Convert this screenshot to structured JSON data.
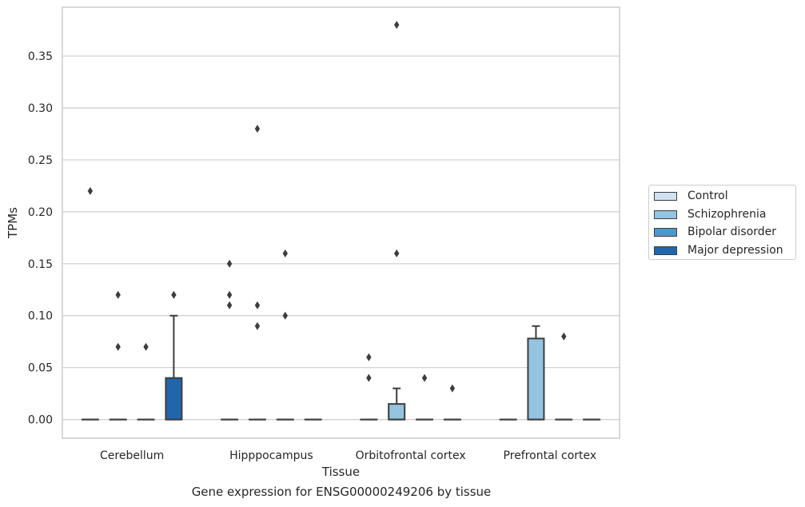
{
  "chart_data": {
    "type": "box",
    "caption": "Gene expression for ENSG00000249206 by tissue",
    "xlabel": "Tissue",
    "ylabel": "TPMs",
    "ylim": [
      -0.018,
      0.397
    ],
    "yticks": [
      0.0,
      0.05,
      0.1,
      0.15,
      0.2,
      0.25,
      0.3,
      0.35
    ],
    "ytick_labels": [
      "0.00",
      "0.05",
      "0.10",
      "0.15",
      "0.20",
      "0.25",
      "0.30",
      "0.35"
    ],
    "grid": "horizontal",
    "legend_position": "right",
    "categories": [
      "Cerebellum",
      "Hipppocampus",
      "Orbitofrontal cortex",
      "Prefrontal cortex"
    ],
    "series": [
      {
        "name": "Control",
        "color": "#d0e1f2",
        "boxes": [
          {
            "category": "Cerebellum",
            "q1": 0,
            "median": 0,
            "q3": 0,
            "whisker_low": 0,
            "whisker_high": 0,
            "outliers": [
              0.22
            ]
          },
          {
            "category": "Hipppocampus",
            "q1": 0,
            "median": 0,
            "q3": 0,
            "whisker_low": 0,
            "whisker_high": 0,
            "outliers": [
              0.15,
              0.12,
              0.11
            ]
          },
          {
            "category": "Orbitofrontal cortex",
            "q1": 0,
            "median": 0,
            "q3": 0,
            "whisker_low": 0,
            "whisker_high": 0,
            "outliers": [
              0.06,
              0.04
            ]
          },
          {
            "category": "Prefrontal cortex",
            "q1": 0,
            "median": 0,
            "q3": 0,
            "whisker_low": 0,
            "whisker_high": 0,
            "outliers": []
          }
        ]
      },
      {
        "name": "Schizophrenia",
        "color": "#94c4df",
        "boxes": [
          {
            "category": "Cerebellum",
            "q1": 0,
            "median": 0,
            "q3": 0,
            "whisker_low": 0,
            "whisker_high": 0,
            "outliers": [
              0.12,
              0.07
            ]
          },
          {
            "category": "Hipppocampus",
            "q1": 0,
            "median": 0,
            "q3": 0,
            "whisker_low": 0,
            "whisker_high": 0,
            "outliers": [
              0.28,
              0.11,
              0.09
            ]
          },
          {
            "category": "Orbitofrontal cortex",
            "q1": 0,
            "median": 0,
            "q3": 0.015,
            "whisker_low": 0,
            "whisker_high": 0.03,
            "outliers": [
              0.38,
              0.16
            ]
          },
          {
            "category": "Prefrontal cortex",
            "q1": 0,
            "median": 0,
            "q3": 0.078,
            "whisker_low": 0,
            "whisker_high": 0.09,
            "outliers": []
          }
        ]
      },
      {
        "name": "Bipolar disorder",
        "color": "#4a98c9",
        "boxes": [
          {
            "category": "Cerebellum",
            "q1": 0,
            "median": 0,
            "q3": 0,
            "whisker_low": 0,
            "whisker_high": 0,
            "outliers": [
              0.07
            ]
          },
          {
            "category": "Hipppocampus",
            "q1": 0,
            "median": 0,
            "q3": 0,
            "whisker_low": 0,
            "whisker_high": 0,
            "outliers": [
              0.16,
              0.1
            ]
          },
          {
            "category": "Orbitofrontal cortex",
            "q1": 0,
            "median": 0,
            "q3": 0,
            "whisker_low": 0,
            "whisker_high": 0,
            "outliers": [
              0.04
            ]
          },
          {
            "category": "Prefrontal cortex",
            "q1": 0,
            "median": 0,
            "q3": 0,
            "whisker_low": 0,
            "whisker_high": 0,
            "outliers": [
              0.08
            ]
          }
        ]
      },
      {
        "name": "Major depression",
        "color": "#2166ac",
        "boxes": [
          {
            "category": "Cerebellum",
            "q1": 0,
            "median": 0,
            "q3": 0.04,
            "whisker_low": 0,
            "whisker_high": 0.1,
            "outliers": [
              0.12
            ]
          },
          {
            "category": "Hipppocampus",
            "q1": 0,
            "median": 0,
            "q3": 0,
            "whisker_low": 0,
            "whisker_high": 0,
            "outliers": []
          },
          {
            "category": "Orbitofrontal cortex",
            "q1": 0,
            "median": 0,
            "q3": 0,
            "whisker_low": 0,
            "whisker_high": 0,
            "outliers": [
              0.03
            ]
          },
          {
            "category": "Prefrontal cortex",
            "q1": 0,
            "median": 0,
            "q3": 0,
            "whisker_low": 0,
            "whisker_high": 0,
            "outliers": []
          }
        ]
      }
    ]
  }
}
